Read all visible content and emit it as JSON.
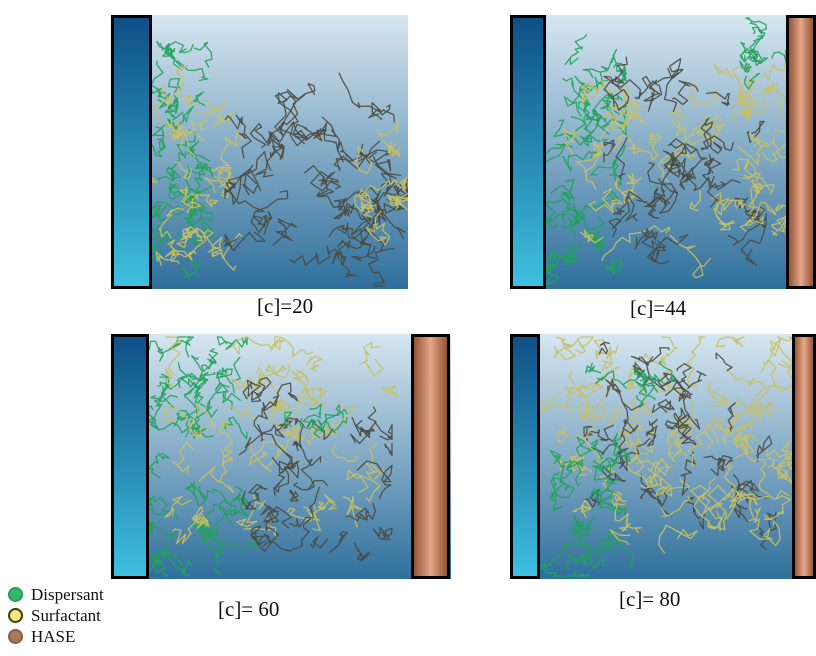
{
  "panels": [
    {
      "caption": "[c]=20"
    },
    {
      "caption": "[c]=44"
    },
    {
      "caption": "[c]= 60"
    },
    {
      "caption": "[c]= 80"
    }
  ],
  "legend": [
    {
      "label": "Dispersant",
      "color": "#33b96a",
      "border": "#2a9a55"
    },
    {
      "label": "Surfactant",
      "color": "#f2e77a",
      "border": "#3a3a10"
    },
    {
      "label": "HASE",
      "color": "#a97a58",
      "border": "#8a5e40"
    }
  ],
  "colors": {
    "left_wall_dark": "#0f4f86",
    "left_wall_light": "#3fc0e0",
    "right_wall_dark": "#8a4a2e",
    "right_wall_light": "#e6a788",
    "chamber_top": "#d6e6f0",
    "chamber_bottom": "#2f6f9c",
    "dispersant": "#1fa35a",
    "surfactant": "#c9c060",
    "hase": "#4a4a40"
  }
}
